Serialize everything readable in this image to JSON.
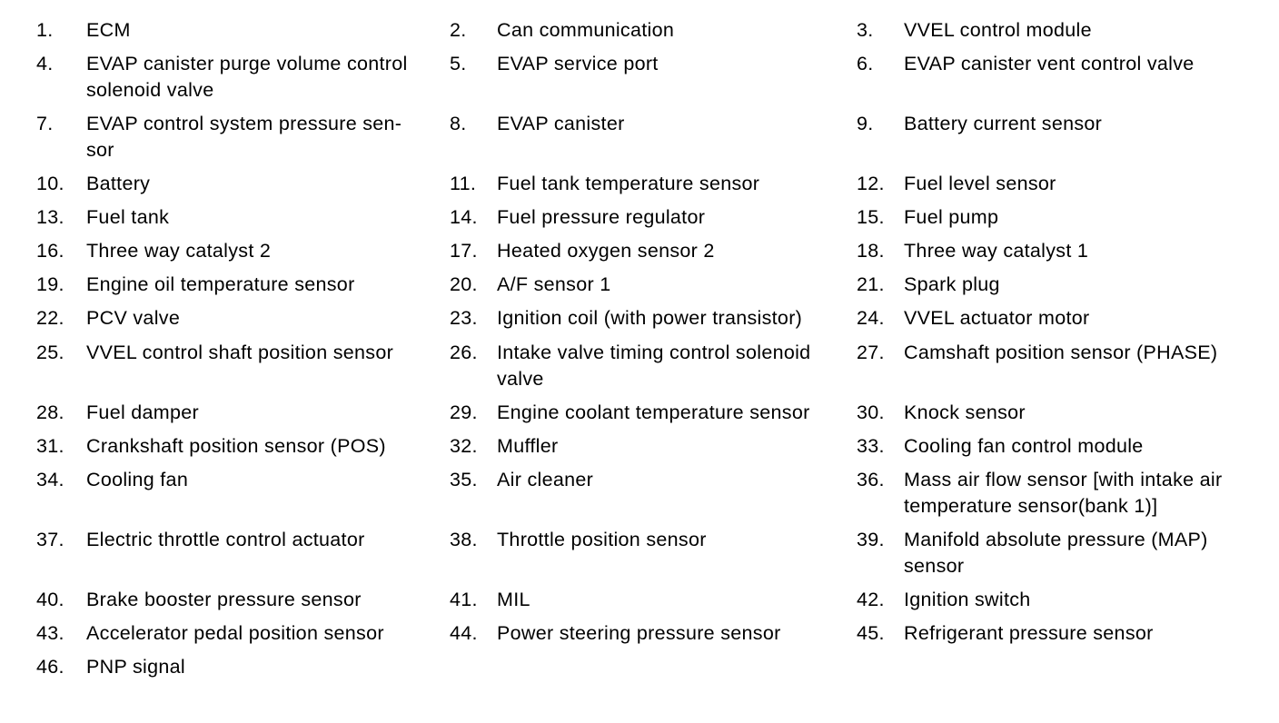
{
  "document": {
    "kind": "engine-component-parts-legend",
    "rows": [
      {
        "cells": [
          {
            "num": "1.",
            "label": "ECM"
          },
          {
            "num": "2.",
            "label": "Can communication"
          },
          {
            "num": "3.",
            "label": "VVEL control module"
          }
        ]
      },
      {
        "cells": [
          {
            "num": "4.",
            "label": "EVAP canister purge volume control\nsolenoid valve"
          },
          {
            "num": "5.",
            "label": "EVAP service port"
          },
          {
            "num": "6.",
            "label": "EVAP canister vent control valve"
          }
        ]
      },
      {
        "cells": [
          {
            "num": "7.",
            "label": "EVAP control system pressure sen-\nsor"
          },
          {
            "num": "8.",
            "label": "EVAP canister"
          },
          {
            "num": "9.",
            "label": "Battery current sensor"
          }
        ]
      },
      {
        "cells": [
          {
            "num": "10.",
            "label": "Battery"
          },
          {
            "num": "11.",
            "label": "Fuel tank temperature sensor"
          },
          {
            "num": "12.",
            "label": "Fuel level sensor"
          }
        ]
      },
      {
        "cells": [
          {
            "num": "13.",
            "label": "Fuel tank"
          },
          {
            "num": "14.",
            "label": "Fuel pressure regulator"
          },
          {
            "num": "15.",
            "label": "Fuel pump"
          }
        ]
      },
      {
        "cells": [
          {
            "num": "16.",
            "label": "Three way catalyst 2"
          },
          {
            "num": "17.",
            "label": "Heated oxygen sensor 2"
          },
          {
            "num": "18.",
            "label": "Three way catalyst 1"
          }
        ]
      },
      {
        "cells": [
          {
            "num": "19.",
            "label": "Engine oil temperature sensor"
          },
          {
            "num": "20.",
            "label": "A/F sensor 1"
          },
          {
            "num": "21.",
            "label": "Spark plug"
          }
        ]
      },
      {
        "cells": [
          {
            "num": "22.",
            "label": "PCV valve"
          },
          {
            "num": "23.",
            "label": "Ignition coil (with power transistor)"
          },
          {
            "num": "24.",
            "label": "VVEL actuator motor"
          }
        ]
      },
      {
        "cells": [
          {
            "num": "25.",
            "label": "VVEL control shaft position sensor"
          },
          {
            "num": "26.",
            "label": "Intake valve timing control solenoid\nvalve"
          },
          {
            "num": "27.",
            "label": "Camshaft position sensor (PHASE)"
          }
        ]
      },
      {
        "cells": [
          {
            "num": "28.",
            "label": "Fuel damper"
          },
          {
            "num": "29.",
            "label": "Engine coolant temperature sensor"
          },
          {
            "num": "30.",
            "label": "Knock sensor"
          }
        ]
      },
      {
        "cells": [
          {
            "num": "31.",
            "label": "Crankshaft position sensor (POS)"
          },
          {
            "num": "32.",
            "label": "Muffler"
          },
          {
            "num": "33.",
            "label": "Cooling fan control module"
          }
        ]
      },
      {
        "cells": [
          {
            "num": "34.",
            "label": "Cooling fan"
          },
          {
            "num": "35.",
            "label": "Air cleaner"
          },
          {
            "num": "36.",
            "label": "Mass air flow sensor [with intake air\ntemperature sensor(bank 1)]"
          }
        ]
      },
      {
        "cells": [
          {
            "num": "37.",
            "label": "Electric throttle control actuator"
          },
          {
            "num": "38.",
            "label": "Throttle position sensor"
          },
          {
            "num": "39.",
            "label": "Manifold absolute pressure (MAP)\nsensor"
          }
        ]
      },
      {
        "cells": [
          {
            "num": "40.",
            "label": "Brake booster pressure sensor"
          },
          {
            "num": "41.",
            "label": "MIL"
          },
          {
            "num": "42.",
            "label": "Ignition switch"
          }
        ]
      },
      {
        "cells": [
          {
            "num": "43.",
            "label": "Accelerator pedal position sensor"
          },
          {
            "num": "44.",
            "label": "Power steering pressure sensor"
          },
          {
            "num": "45.",
            "label": "Refrigerant pressure sensor"
          }
        ]
      },
      {
        "cells": [
          {
            "num": "46.",
            "label": "PNP signal"
          }
        ]
      }
    ],
    "colors": {
      "background": "#ffffff",
      "text": "#000000"
    }
  }
}
